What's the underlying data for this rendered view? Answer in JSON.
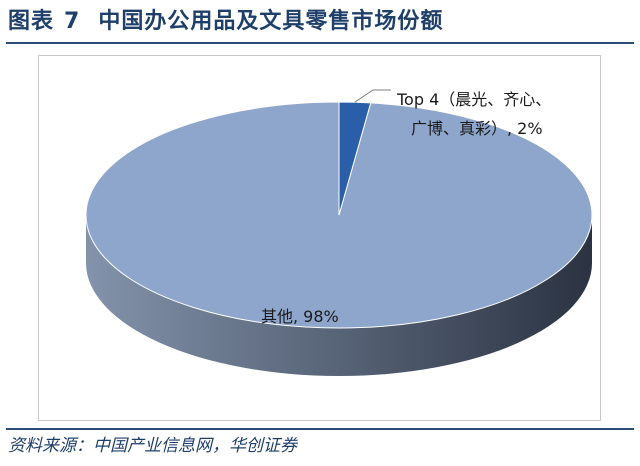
{
  "figure": {
    "label": "图表",
    "number": "7",
    "title": "中国办公用品及文具零售市场份额"
  },
  "source": "资料来源：中国产业信息网，华创证券",
  "colors": {
    "accent": "#1f3f6b",
    "pie_top": "#8fa6cc",
    "pie_side_light": "#8393ab",
    "pie_side_dark": "#2b3342",
    "small_slice": "#2a5ea8"
  },
  "chart_data": {
    "type": "pie",
    "style": "3d",
    "title": "",
    "slices": [
      {
        "label_line1": "Top 4（晨光、齐心、",
        "label_line2": "广博、真彩）, 2%",
        "value": 2
      },
      {
        "label_line1": "其他, 98%",
        "label_line2": "",
        "value": 98
      }
    ]
  }
}
